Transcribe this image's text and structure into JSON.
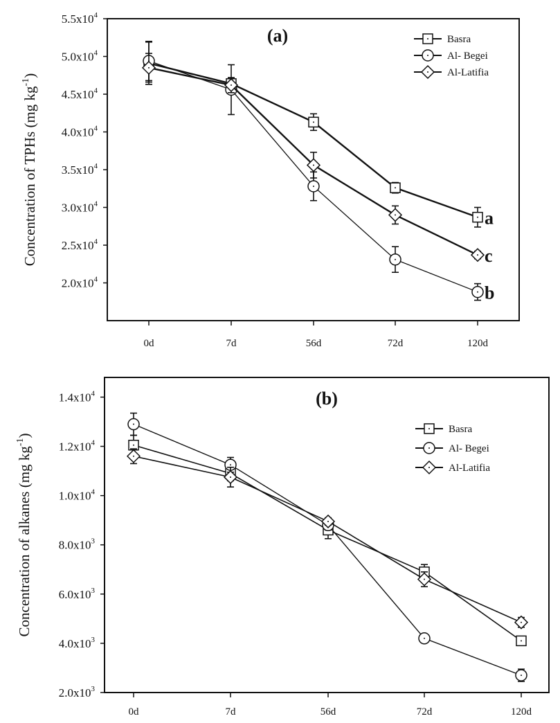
{
  "chart_data": [
    {
      "type": "line",
      "title": "(a)",
      "xlabel": "",
      "ylabel": "Concentration of TPHs (mg kg",
      "ylabel_sup": "-1",
      "ylabel_end": ")",
      "categories": [
        "0d",
        "7d",
        "56d",
        "72d",
        "120d"
      ],
      "ylim": [
        15000,
        55000
      ],
      "y_ticks": [
        20000,
        25000,
        30000,
        35000,
        40000,
        45000,
        50000,
        55000
      ],
      "y_tick_labels": [
        "2.0x10",
        "2.5x10",
        "3.0x10",
        "3.5x10",
        "4.0x10",
        "4.5x10",
        "5.0x10",
        "5.5x10"
      ],
      "y_tick_exp": "4",
      "legend_position": "top-right",
      "grid": false,
      "series": [
        {
          "name": "Basra",
          "marker": "square",
          "values": [
            49100,
            46400,
            41300,
            32600,
            28700
          ],
          "errors": [
            2800,
            700,
            1100,
            700,
            1300
          ],
          "annotation": "a"
        },
        {
          "name": "Al- Begei",
          "marker": "circle",
          "values": [
            49400,
            45600,
            32800,
            23100,
            18800
          ],
          "errors": [
            2600,
            3300,
            1900,
            1700,
            1100
          ],
          "annotation": "b"
        },
        {
          "name": "Al-Latifia",
          "marker": "diamond",
          "values": [
            48500,
            46200,
            35600,
            29000,
            23700
          ],
          "errors": [
            1900,
            1000,
            1700,
            1200,
            500
          ],
          "annotation": "c"
        }
      ]
    },
    {
      "type": "line",
      "title": "(b)",
      "xlabel": "",
      "ylabel": "Concentration of alkanes (mg kg",
      "ylabel_sup": "-1",
      "ylabel_end": ")",
      "categories": [
        "0d",
        "7d",
        "56d",
        "72d",
        "120d"
      ],
      "ylim": [
        2000,
        14800
      ],
      "y_ticks": [
        2000,
        4000,
        6000,
        8000,
        10000,
        12000,
        14000
      ],
      "y_tick_labels": [
        "2.0x10",
        "4.0x10",
        "6.0x10",
        "8.0x10",
        "1.0x10",
        "1.2x10",
        "1.4x10"
      ],
      "y_tick_exps": [
        "3",
        "3",
        "3",
        "3",
        "4",
        "4",
        "4"
      ],
      "legend_position": "top-right",
      "grid": false,
      "series": [
        {
          "name": "Basra",
          "marker": "square",
          "values": [
            12050,
            10900,
            8600,
            6900,
            4100
          ],
          "errors": [
            400,
            300,
            350,
            300,
            150
          ]
        },
        {
          "name": "Al- Begei",
          "marker": "circle",
          "values": [
            12900,
            11250,
            8800,
            4200,
            2700
          ],
          "errors": [
            450,
            300,
            200,
            150,
            250
          ]
        },
        {
          "name": "Al-Latifia",
          "marker": "diamond",
          "values": [
            11600,
            10750,
            8950,
            6600,
            4850
          ],
          "errors": [
            300,
            400,
            150,
            300,
            200
          ]
        }
      ]
    }
  ]
}
